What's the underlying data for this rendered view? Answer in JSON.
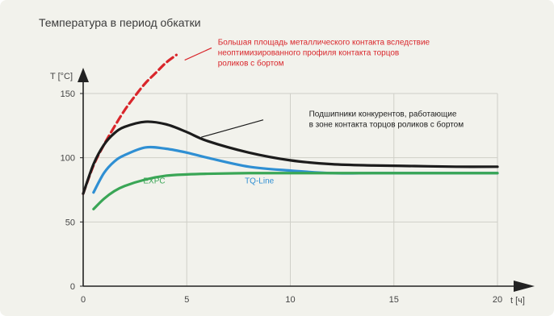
{
  "chart_data": {
    "type": "line",
    "title": "Температура в период обкатки",
    "ylabel": "T [°C]",
    "xlabel": "t [ч]",
    "xlim": [
      0,
      20
    ],
    "ylim": [
      0,
      150
    ],
    "xticks": [
      "0",
      "5",
      "10",
      "15",
      "20"
    ],
    "yticks": [
      "0",
      "50",
      "100",
      "150"
    ],
    "grid": true,
    "colors": {
      "red": "#d9262b",
      "black": "#1c1c1c",
      "blue": "#2f8fd3",
      "green": "#3aa656",
      "grid": "#cfcfc8",
      "annotation_red": "#d9262b",
      "annotation_black": "#1c1c1c"
    },
    "series": [
      {
        "color_key": "red",
        "dashed": true,
        "x": [
          0,
          0.5,
          1,
          1.5,
          2,
          2.5,
          3,
          3.5,
          4,
          4.5
        ],
        "y": [
          72,
          94,
          110,
          124,
          137,
          148,
          158,
          166,
          174,
          180
        ]
      },
      {
        "color_key": "black",
        "x": [
          0,
          0.5,
          1,
          1.5,
          2,
          3,
          4,
          5,
          6,
          8,
          10,
          12,
          14,
          16,
          18,
          20
        ],
        "y": [
          72,
          95,
          110,
          119,
          124,
          128,
          126,
          120,
          113,
          104,
          98,
          95,
          94,
          93.5,
          93,
          93
        ]
      },
      {
        "color_key": "blue",
        "x": [
          0.5,
          1,
          1.5,
          2,
          3,
          4,
          5,
          6,
          8,
          10,
          12,
          14,
          16,
          18,
          20
        ],
        "y": [
          73,
          88,
          97,
          102,
          108,
          107,
          104,
          100,
          93,
          90,
          88,
          88,
          88,
          88,
          88
        ]
      },
      {
        "color_key": "green",
        "x": [
          0.5,
          1,
          1.5,
          2,
          3,
          4,
          5,
          6,
          8,
          10,
          12,
          14,
          16,
          18,
          20
        ],
        "y": [
          60,
          68,
          74,
          78,
          83,
          86,
          87,
          87.5,
          88,
          88,
          88,
          88,
          88,
          88,
          88
        ]
      }
    ],
    "annotations": [
      {
        "color_key": "annotation_red",
        "x": 6.5,
        "y": 188,
        "lines": [
          "Большая площадь металлического контакта вследствие",
          "неоптимизированного профиля контакта торцов",
          "роликов с бортом"
        ]
      },
      {
        "color_key": "annotation_black",
        "x": 10.9,
        "y": 132,
        "lines": [
          "Подшипники конкурентов, работающие",
          "в зоне контакта торцов роликов с бортом"
        ]
      },
      {
        "color_key": "green",
        "x": 2.9,
        "y": 80,
        "lines": [
          "EXPC"
        ]
      },
      {
        "color_key": "blue",
        "x": 7.8,
        "y": 80,
        "lines": [
          "TQ-Line"
        ]
      }
    ]
  }
}
